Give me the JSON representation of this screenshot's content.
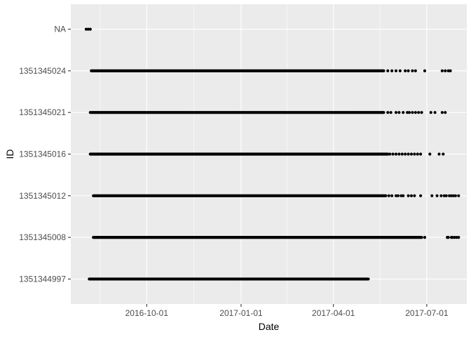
{
  "chart_data": {
    "type": "scatter",
    "title": "",
    "xlabel": "Date",
    "ylabel": "ID",
    "x_type": "date",
    "xlim": [
      "2016-07-19",
      "2017-08-09"
    ],
    "x_ticks": [
      "2016-10-01",
      "2017-01-01",
      "2017-04-01",
      "2017-07-01"
    ],
    "x_tick_labels": [
      "2016-10-01",
      "2017-01-01",
      "2017-04-01",
      "2017-07-01"
    ],
    "categories": [
      "1351344997",
      "1351345008",
      "1351345012",
      "1351345016",
      "1351345021",
      "1351345024",
      "NA"
    ],
    "grid": true,
    "legend": "none",
    "colors": {
      "panel": "#EBEBEB",
      "grid": "#FFFFFF",
      "point": "#000000"
    },
    "series": [
      {
        "category": "1351344997",
        "dense_ranges": [
          [
            "2016-08-06",
            "2017-05-05"
          ]
        ],
        "points": []
      },
      {
        "category": "1351345008",
        "dense_ranges": [
          [
            "2016-08-10",
            "2017-06-26"
          ]
        ],
        "points": [
          "2017-06-29",
          "2017-07-21",
          "2017-07-22",
          "2017-07-25",
          "2017-07-26",
          "2017-07-28",
          "2017-07-30",
          "2017-08-01"
        ]
      },
      {
        "category": "1351345012",
        "dense_ranges": [
          [
            "2016-08-10",
            "2017-05-22"
          ]
        ],
        "points": [
          "2017-05-25",
          "2017-05-28",
          "2017-06-01",
          "2017-06-03",
          "2017-06-06",
          "2017-06-08",
          "2017-06-13",
          "2017-06-16",
          "2017-06-19",
          "2017-06-25",
          "2017-07-06",
          "2017-07-11",
          "2017-07-15",
          "2017-07-18",
          "2017-07-20",
          "2017-07-23",
          "2017-07-25",
          "2017-07-27",
          "2017-07-29",
          "2017-08-01"
        ]
      },
      {
        "category": "1351345016",
        "dense_ranges": [
          [
            "2016-08-07",
            "2017-05-24"
          ]
        ],
        "points": [
          "2017-05-26",
          "2017-05-29",
          "2017-06-01",
          "2017-06-04",
          "2017-06-07",
          "2017-06-10",
          "2017-06-13",
          "2017-06-16",
          "2017-06-19",
          "2017-06-22",
          "2017-06-25",
          "2017-07-04",
          "2017-07-13",
          "2017-07-17"
        ]
      },
      {
        "category": "1351345021",
        "dense_ranges": [
          [
            "2016-08-07",
            "2017-05-20"
          ]
        ],
        "points": [
          "2017-05-24",
          "2017-05-27",
          "2017-06-01",
          "2017-06-04",
          "2017-06-08",
          "2017-06-12",
          "2017-06-14",
          "2017-06-17",
          "2017-06-20",
          "2017-06-23",
          "2017-06-26",
          "2017-07-05",
          "2017-07-09",
          "2017-07-16",
          "2017-07-19"
        ]
      },
      {
        "category": "1351345024",
        "dense_ranges": [
          [
            "2016-08-08",
            "2017-05-20"
          ]
        ],
        "points": [
          "2017-05-24",
          "2017-05-28",
          "2017-06-01",
          "2017-06-05",
          "2017-06-10",
          "2017-06-13",
          "2017-06-17",
          "2017-06-20",
          "2017-06-29",
          "2017-07-16",
          "2017-07-19",
          "2017-07-22",
          "2017-07-24"
        ]
      },
      {
        "category": "NA",
        "dense_ranges": [],
        "points": [
          "2016-08-03",
          "2016-08-05",
          "2016-08-07"
        ]
      }
    ]
  }
}
